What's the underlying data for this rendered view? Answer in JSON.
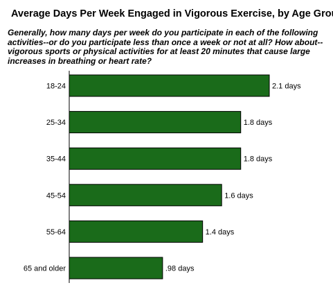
{
  "chart_data": {
    "type": "bar",
    "orientation": "horizontal",
    "title": "Average Days Per Week Engaged in Vigorous Exercise, by Age Group",
    "subtitle": "Generally, how many days per week do you participate in each of the following activities--or do you participate less than once a week or not at all? How about--vigorous sports or physical activities for at least 20 minutes that cause large increases in breathing or heart rate?",
    "categories": [
      "18-24",
      "25-34",
      "35-44",
      "45-54",
      "55-64",
      "65 and older"
    ],
    "values": [
      2.1,
      1.8,
      1.8,
      1.6,
      1.4,
      0.98
    ],
    "data_labels": [
      "2.1 days",
      "1.8 days",
      "1.8 days",
      "1.6 days",
      "1.4 days",
      ".98 days"
    ],
    "bar_color": "#1a6b1a",
    "xlim": [
      0,
      2.1
    ],
    "grid": false,
    "legend": "none"
  }
}
